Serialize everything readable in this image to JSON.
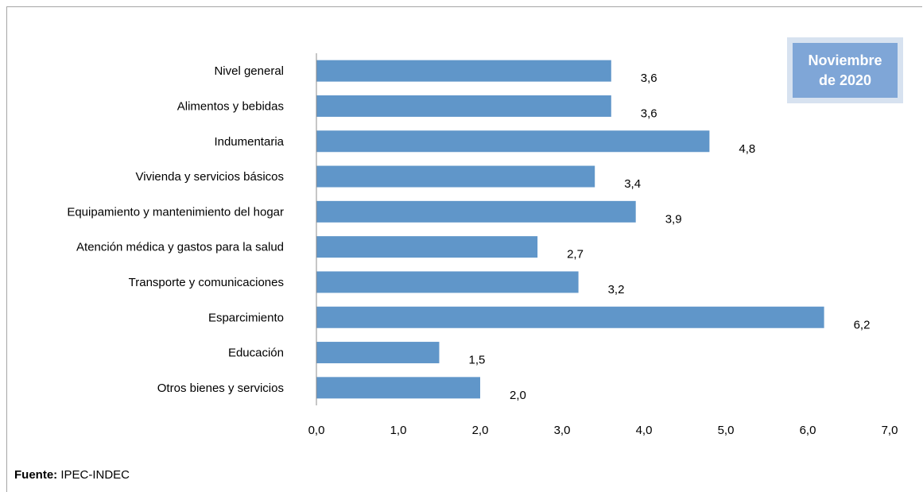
{
  "chart_data": {
    "type": "bar",
    "orientation": "horizontal",
    "categories": [
      "Nivel  general",
      "Alimentos y bebidas",
      "Indumentaria",
      "Vivienda y servicios básicos",
      "Equipamiento y  mantenimiento del hogar",
      "Atención médica y gastos para la salud",
      "Transporte y comunicaciones",
      "Esparcimiento",
      "Educación",
      "Otros bienes y servicios"
    ],
    "values": [
      3.6,
      3.6,
      4.8,
      3.4,
      3.9,
      2.7,
      3.2,
      6.2,
      1.5,
      2.0
    ],
    "value_labels": [
      "3,6",
      "3,6",
      "4,8",
      "3,4",
      "3,9",
      "2,7",
      "3,2",
      "6,2",
      "1,5",
      "2,0"
    ],
    "xlim": [
      0,
      7
    ],
    "x_ticks": [
      0,
      1,
      2,
      3,
      4,
      5,
      6,
      7
    ],
    "x_tick_labels": [
      "0,0",
      "1,0",
      "2,0",
      "3,0",
      "4,0",
      "5,0",
      "6,0",
      "7,0"
    ],
    "grid": false,
    "bar_color": "#6096c9"
  },
  "badge": {
    "line1": "Noviembre",
    "line2": "de 2020"
  },
  "source": {
    "label": "Fuente:",
    "text": " IPEC-INDEC"
  }
}
